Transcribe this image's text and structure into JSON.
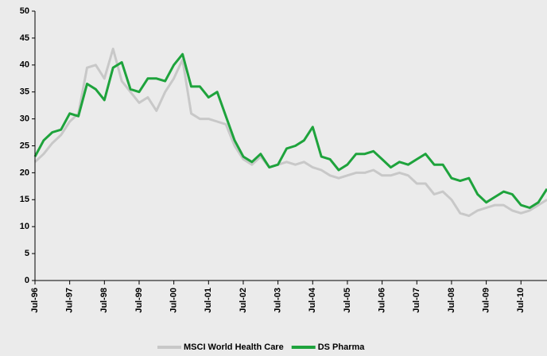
{
  "chart_data": {
    "type": "line",
    "x": [
      1996.5,
      1996.75,
      1997,
      1997.25,
      1997.5,
      1997.75,
      1998,
      1998.25,
      1998.5,
      1998.75,
      1999,
      1999.25,
      1999.5,
      1999.75,
      2000,
      2000.25,
      2000.5,
      2000.75,
      2001,
      2001.25,
      2001.5,
      2001.75,
      2002,
      2002.25,
      2002.5,
      2002.75,
      2003,
      2003.25,
      2003.5,
      2003.75,
      2004,
      2004.25,
      2004.5,
      2004.75,
      2005,
      2005.25,
      2005.5,
      2005.75,
      2006,
      2006.25,
      2006.5,
      2006.75,
      2007,
      2007.25,
      2007.5,
      2007.75,
      2008,
      2008.25,
      2008.5,
      2008.75,
      2009,
      2009.25,
      2009.5,
      2009.75,
      2010,
      2010.25,
      2010.5,
      2010.75,
      2011,
      2011.25
    ],
    "series": [
      {
        "name": "MSCI World Health Care",
        "color": "#c8c8c8",
        "values": [
          22,
          23.5,
          25.5,
          27,
          29.5,
          31,
          39.5,
          40,
          37.5,
          43,
          37,
          35,
          33,
          34,
          31.5,
          35,
          37.5,
          41,
          31,
          30,
          30,
          29.5,
          29,
          25,
          22.5,
          21.5,
          23,
          21,
          21.5,
          22,
          21.5,
          22,
          21,
          20.5,
          19.5,
          19,
          19.5,
          20,
          20,
          20.5,
          19.5,
          19.5,
          20,
          19.5,
          18,
          18,
          16,
          16.5,
          15,
          12.5,
          12,
          13,
          13.5,
          14,
          14,
          13,
          12.5,
          13,
          14,
          15
        ]
      },
      {
        "name": "DS Pharma",
        "color": "#1ea33c",
        "values": [
          23,
          26,
          27.5,
          28,
          31,
          30.5,
          36.5,
          35.5,
          33.5,
          39.5,
          40.5,
          35.5,
          35,
          37.5,
          37.5,
          37,
          40,
          42,
          36,
          36,
          34,
          35,
          30.5,
          26,
          23,
          22,
          23.5,
          21,
          21.5,
          24.5,
          25,
          26,
          28.5,
          23,
          22.5,
          20.5,
          21.5,
          23.5,
          23.5,
          24,
          22.5,
          21,
          22,
          21.5,
          22.5,
          23.5,
          21.5,
          21.5,
          19,
          18.5,
          19,
          16,
          14.5,
          15.5,
          16.5,
          16,
          14,
          13.5,
          14.5,
          17
        ]
      }
    ],
    "xlim": [
      1996.5,
      2011.25
    ],
    "xticks": [
      {
        "value": 1996.5,
        "label": "Jul-96"
      },
      {
        "value": 1997.5,
        "label": "Jul-97"
      },
      {
        "value": 1998.5,
        "label": "Jul-98"
      },
      {
        "value": 1999.5,
        "label": "Jul-99"
      },
      {
        "value": 2000.5,
        "label": "Jul-00"
      },
      {
        "value": 2001.5,
        "label": "Jul-01"
      },
      {
        "value": 2002.5,
        "label": "Jul-02"
      },
      {
        "value": 2003.5,
        "label": "Jul-03"
      },
      {
        "value": 2004.5,
        "label": "Jul-04"
      },
      {
        "value": 2005.5,
        "label": "Jul-05"
      },
      {
        "value": 2006.5,
        "label": "Jul-06"
      },
      {
        "value": 2007.5,
        "label": "Jul-07"
      },
      {
        "value": 2008.5,
        "label": "Jul-08"
      },
      {
        "value": 2009.5,
        "label": "Jul-09"
      },
      {
        "value": 2010.5,
        "label": "Jul-10"
      }
    ],
    "ylim": [
      0,
      50
    ],
    "yticks": [
      0,
      5,
      10,
      15,
      20,
      25,
      30,
      35,
      40,
      45,
      50
    ],
    "legend": "bottom"
  }
}
